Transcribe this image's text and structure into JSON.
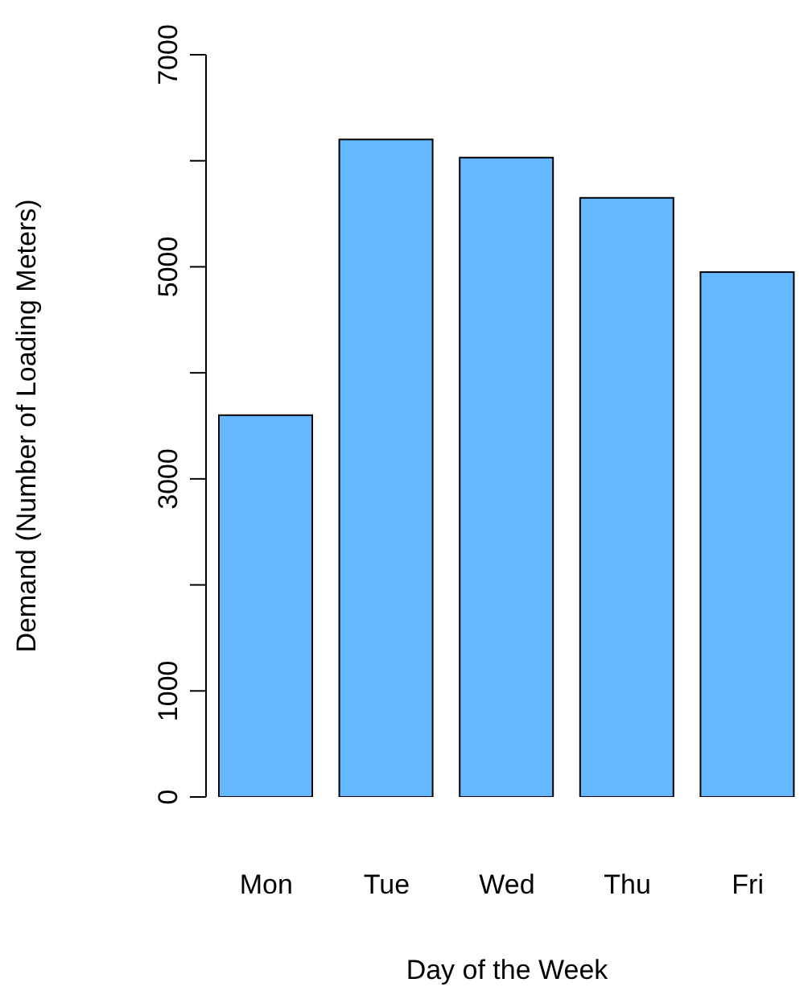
{
  "chart_data": {
    "type": "bar",
    "xlabel": "Day of the Week",
    "ylabel": "Demand (Number of Loading Meters)",
    "categories": [
      "Mon",
      "Tue",
      "Wed",
      "Thu",
      "Fri"
    ],
    "values": [
      3600,
      6200,
      6030,
      5650,
      4950
    ],
    "color": "#63b8ff",
    "ylim": [
      0,
      7000
    ],
    "yticks": [
      0,
      1000,
      {
        "value": 2000,
        "label": null
      },
      3000,
      {
        "value": 4000,
        "label": null
      },
      5000,
      {
        "value": 6000,
        "label": null
      },
      7000
    ]
  }
}
